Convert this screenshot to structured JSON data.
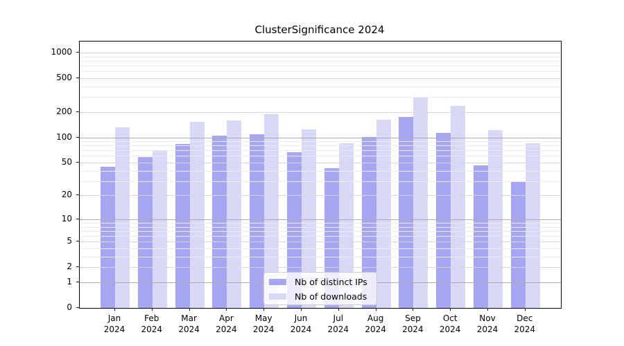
{
  "title": "ClusterSignificance 2024",
  "chart_data": {
    "type": "bar",
    "title": "ClusterSignificance 2024",
    "categories": [
      "Jan",
      "Feb",
      "Mar",
      "Apr",
      "May",
      "Jun",
      "Jul",
      "Aug",
      "Sep",
      "Oct",
      "Nov",
      "Dec"
    ],
    "xtick_year": "2024",
    "series": [
      {
        "name": "Nb of distinct IPs",
        "color": "#a6a6f2",
        "values": [
          45,
          58,
          83,
          105,
          109,
          67,
          43,
          101,
          175,
          113,
          46,
          29
        ]
      },
      {
        "name": "Nb of downloads",
        "color": "#d9d9f7",
        "values": [
          132,
          70,
          153,
          159,
          188,
          124,
          85,
          162,
          300,
          238,
          122,
          85
        ]
      }
    ],
    "yscale": "log1p",
    "yticks": [
      0,
      1,
      2,
      5,
      10,
      20,
      50,
      100,
      200,
      500,
      1000
    ],
    "ylim": [
      0,
      1000
    ],
    "xlabel": "",
    "ylabel": "",
    "grid": true,
    "legend_position": "lower-center"
  }
}
